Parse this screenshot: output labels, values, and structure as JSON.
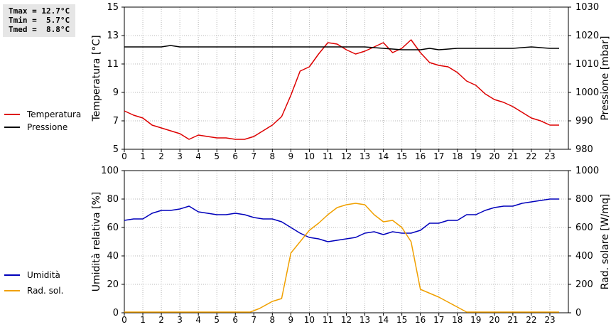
{
  "stats": {
    "tmax": "Tmax = 12.7°C",
    "tmin": "Tmin =  5.7°C",
    "tmed": "Tmed =  8.8°C"
  },
  "colors": {
    "temperature": "#dd0000",
    "pressure": "#000000",
    "humidity": "#0000bb",
    "radiation": "#f0a000",
    "grid": "#b8b8b8"
  },
  "chart_data": [
    {
      "type": "line",
      "ylabel": "Temperatura [°C]",
      "y2label": "Pressione [mbar]",
      "ylim": [
        5,
        15
      ],
      "y2lim": [
        980,
        1030
      ],
      "xlim": [
        0,
        24
      ],
      "yticks": [
        "5",
        "7",
        "9",
        "11",
        "13",
        "15"
      ],
      "y2ticks": [
        "980",
        "990",
        "1000",
        "1010",
        "1020",
        "1030"
      ],
      "xticks": [
        "0",
        "1",
        "2",
        "3",
        "4",
        "5",
        "6",
        "7",
        "8",
        "9",
        "10",
        "11",
        "12",
        "13",
        "14",
        "15",
        "16",
        "17",
        "18",
        "19",
        "20",
        "21",
        "22",
        "23"
      ],
      "grid": true,
      "legend_placement": "left",
      "series": [
        {
          "name": "Temperatura",
          "axis": "left",
          "x": [
            0,
            0.5,
            1,
            1.5,
            2,
            2.5,
            3,
            3.5,
            4,
            4.5,
            5,
            5.5,
            6,
            6.5,
            7,
            7.5,
            8,
            8.5,
            9,
            9.5,
            10,
            10.5,
            11,
            11.5,
            12,
            12.5,
            13,
            13.5,
            14,
            14.5,
            15,
            15.5,
            16,
            16.5,
            17,
            17.5,
            18,
            18.5,
            19,
            19.5,
            20,
            20.5,
            21,
            21.5,
            22,
            22.5,
            23,
            23.5
          ],
          "values": [
            7.7,
            7.4,
            7.2,
            6.7,
            6.5,
            6.3,
            6.1,
            5.7,
            6.0,
            5.9,
            5.8,
            5.8,
            5.7,
            5.7,
            5.9,
            6.3,
            6.7,
            7.3,
            8.8,
            10.5,
            10.8,
            11.7,
            12.5,
            12.4,
            12.0,
            11.7,
            11.9,
            12.2,
            12.5,
            11.8,
            12.1,
            12.7,
            11.8,
            11.1,
            10.9,
            10.8,
            10.4,
            9.8,
            9.5,
            8.9,
            8.5,
            8.3,
            8.0,
            7.6,
            7.2,
            7.0,
            6.7,
            6.7
          ]
        },
        {
          "name": "Pressione",
          "axis": "right",
          "x": [
            0,
            1,
            2,
            2.5,
            3,
            4,
            5,
            6,
            7,
            8,
            9,
            10,
            11,
            12,
            13,
            14,
            15,
            16,
            16.5,
            17,
            18,
            19,
            20,
            21,
            22,
            23,
            23.5
          ],
          "values": [
            1016,
            1016,
            1016,
            1016.5,
            1016,
            1016,
            1016,
            1016,
            1016,
            1016,
            1016,
            1016,
            1016,
            1016,
            1016,
            1015.5,
            1015,
            1015,
            1015.5,
            1015,
            1015.5,
            1015.5,
            1015.5,
            1015.5,
            1016,
            1015.5,
            1015.5
          ]
        }
      ]
    },
    {
      "type": "line",
      "ylabel": "Umidità relativa [%]",
      "y2label": "Rad. solare [W/mq]",
      "ylim": [
        0,
        100
      ],
      "y2lim": [
        0,
        1000
      ],
      "xlim": [
        0,
        24
      ],
      "yticks": [
        "0",
        "20",
        "40",
        "60",
        "80",
        "100"
      ],
      "y2ticks": [
        "0",
        "200",
        "400",
        "600",
        "800",
        "1000"
      ],
      "xticks": [
        "0",
        "1",
        "2",
        "3",
        "4",
        "5",
        "6",
        "7",
        "8",
        "9",
        "10",
        "11",
        "12",
        "13",
        "14",
        "15",
        "16",
        "17",
        "18",
        "19",
        "20",
        "21",
        "22",
        "23"
      ],
      "grid": true,
      "legend_placement": "left",
      "series": [
        {
          "name": "Umidità",
          "axis": "left",
          "x": [
            0,
            0.5,
            1,
            1.5,
            2,
            2.5,
            3,
            3.5,
            4,
            4.5,
            5,
            5.5,
            6,
            6.5,
            7,
            7.5,
            8,
            8.5,
            9,
            9.5,
            10,
            10.5,
            11,
            11.5,
            12,
            12.5,
            13,
            13.5,
            14,
            14.5,
            15,
            15.5,
            16,
            16.5,
            17,
            17.5,
            18,
            18.5,
            19,
            19.5,
            20,
            20.5,
            21,
            21.5,
            22,
            22.5,
            23,
            23.5
          ],
          "values": [
            65,
            66,
            66,
            70,
            72,
            72,
            73,
            75,
            71,
            70,
            69,
            69,
            70,
            69,
            67,
            66,
            66,
            64,
            60,
            56,
            53,
            52,
            50,
            51,
            52,
            53,
            56,
            57,
            55,
            57,
            56,
            56,
            58,
            63,
            63,
            65,
            65,
            69,
            69,
            72,
            74,
            75,
            75,
            77,
            78,
            79,
            80,
            80
          ]
        },
        {
          "name": "Rad. sol.",
          "axis": "right",
          "x": [
            0,
            1,
            2,
            3,
            4,
            5,
            6,
            6.8,
            7.3,
            8,
            8.5,
            9,
            9.5,
            10,
            10.5,
            11,
            11.5,
            12,
            12.5,
            13,
            13.5,
            14,
            14.5,
            15,
            15.5,
            16,
            17,
            18,
            18.5,
            19,
            20,
            21,
            22,
            23,
            23.5
          ],
          "values": [
            5,
            5,
            5,
            5,
            5,
            5,
            5,
            5,
            30,
            80,
            100,
            420,
            500,
            580,
            630,
            690,
            740,
            760,
            770,
            760,
            690,
            640,
            650,
            600,
            500,
            165,
            110,
            40,
            5,
            5,
            5,
            5,
            5,
            5,
            5
          ]
        }
      ]
    }
  ]
}
